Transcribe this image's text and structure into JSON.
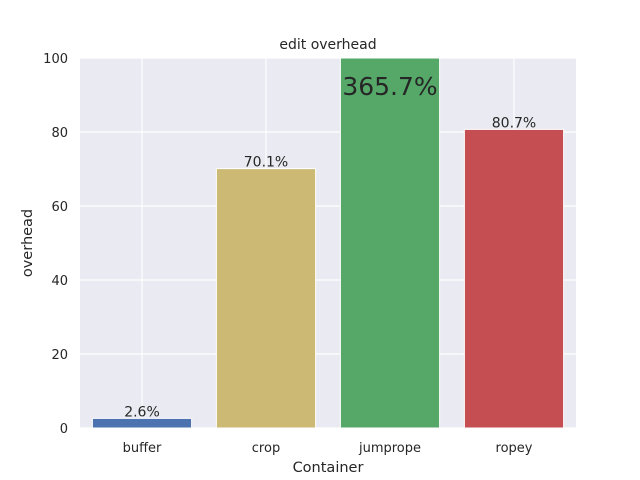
{
  "chart_data": {
    "type": "bar",
    "title": "edit overhead",
    "xlabel": "Container",
    "ylabel": "overhead",
    "categories": [
      "buffer",
      "crop",
      "jumprope",
      "ropey"
    ],
    "values": [
      2.6,
      70.1,
      365.7,
      80.7
    ],
    "data_labels": [
      "2.6%",
      "70.1%",
      "365.7%",
      "80.7%"
    ],
    "colors": [
      "#4c72b0",
      "#ccb974",
      "#55a868",
      "#c44e52"
    ],
    "ylim": [
      0,
      100
    ],
    "yticks": [
      0,
      20,
      40,
      60,
      80,
      100
    ],
    "grid": true,
    "legend": "none",
    "background": "#eaeaf2"
  }
}
